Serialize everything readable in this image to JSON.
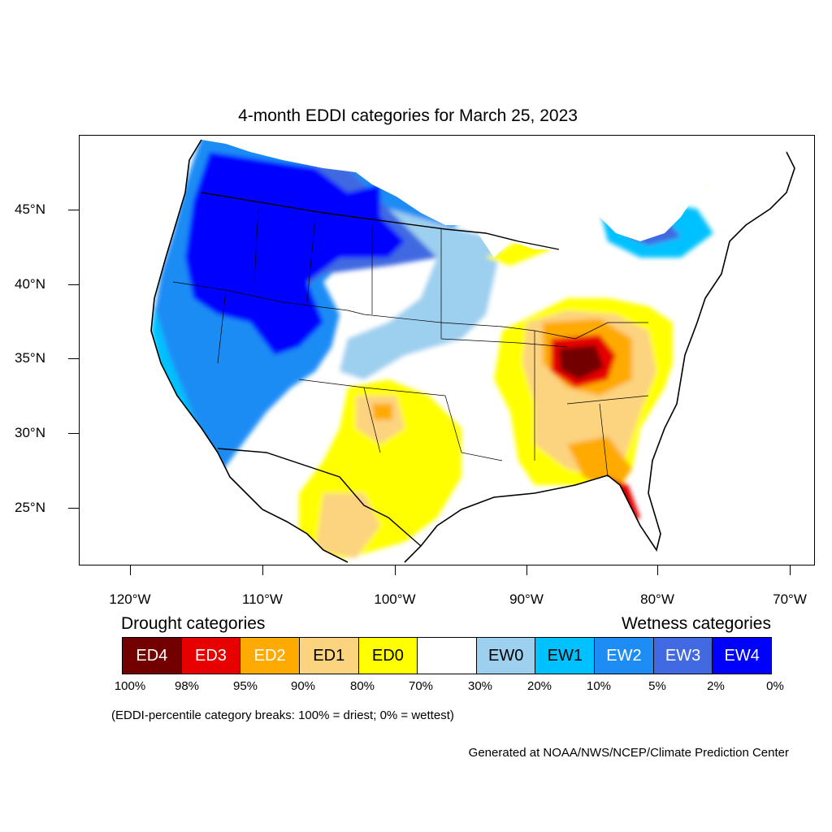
{
  "title": "4-month EDDI categories for March 25, 2023",
  "lat_labels": [
    "45°N",
    "40°N",
    "35°N",
    "30°N",
    "25°N"
  ],
  "lon_labels": [
    "120°W",
    "110°W",
    "100°W",
    "90°W",
    "80°W",
    "70°W"
  ],
  "legend": {
    "drought_heading": "Drought categories",
    "wetness_heading": "Wetness categories",
    "categories": [
      {
        "label": "ED4",
        "color": "#730000",
        "text_color": "#ffffff"
      },
      {
        "label": "ED3",
        "color": "#e60000",
        "text_color": "#ffffff"
      },
      {
        "label": "ED2",
        "color": "#ffaa00",
        "text_color": "#ffffff"
      },
      {
        "label": "ED1",
        "color": "#fcd37f",
        "text_color": "#000000"
      },
      {
        "label": "ED0",
        "color": "#ffff00",
        "text_color": "#000000"
      },
      {
        "label": "",
        "color": "#ffffff",
        "text_color": "#000000"
      },
      {
        "label": "EW0",
        "color": "#9dcfef",
        "text_color": "#000000"
      },
      {
        "label": "EW1",
        "color": "#00c1ff",
        "text_color": "#000000"
      },
      {
        "label": "EW2",
        "color": "#1e8cf5",
        "text_color": "#ffffff"
      },
      {
        "label": "EW3",
        "color": "#4169e1",
        "text_color": "#ffffff"
      },
      {
        "label": "EW4",
        "color": "#0000ff",
        "text_color": "#ffffff"
      }
    ],
    "breaks": [
      "100%",
      "98%",
      "95%",
      "90%",
      "80%",
      "70%",
      "30%",
      "20%",
      "10%",
      "5%",
      "2%",
      "0%"
    ]
  },
  "breaks_note": "(EDDI-percentile category breaks: 100% = driest; 0% = wettest)",
  "credit": "Generated at NOAA/NWS/NCEP/Climate Prediction Center"
}
